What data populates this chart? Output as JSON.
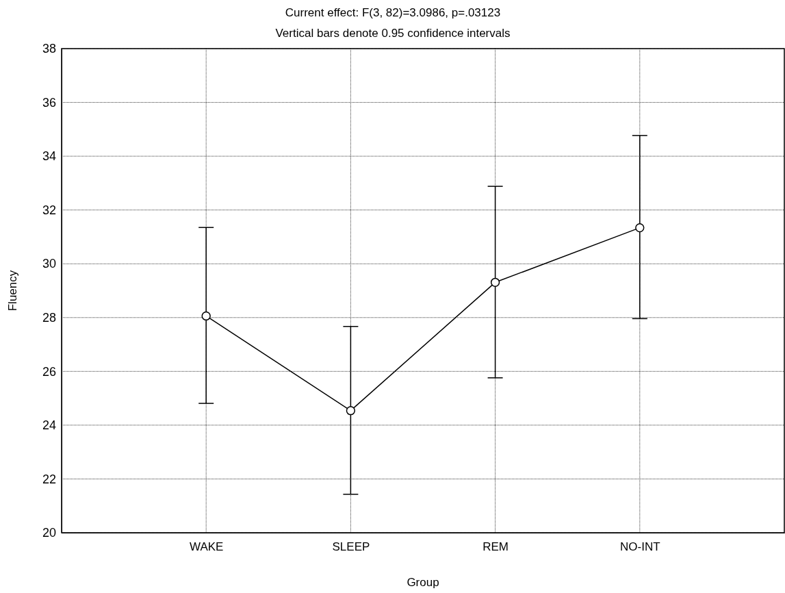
{
  "chart_data": {
    "type": "line",
    "title": "Current effect: F(3, 82)=3.0986, p=.03123",
    "subtitle": "Vertical bars denote 0.95 confidence intervals",
    "xlabel": "Group",
    "ylabel": "Fluency",
    "categories": [
      "WAKE",
      "SLEEP",
      "REM",
      "NO-INT"
    ],
    "series": [
      {
        "color": "#000000",
        "values": [
          28.06,
          24.54,
          29.31,
          31.34
        ],
        "errors": [
          [
            24.81,
            31.35
          ],
          [
            21.43,
            27.67
          ],
          [
            25.76,
            32.88
          ],
          [
            27.96,
            34.77
          ]
        ]
      }
    ],
    "ylim": [
      20,
      38
    ],
    "yticks": [
      20,
      22,
      24,
      26,
      28,
      30,
      32,
      34,
      36,
      38
    ],
    "grid": true,
    "marker": "circle",
    "line_style": "solid"
  }
}
